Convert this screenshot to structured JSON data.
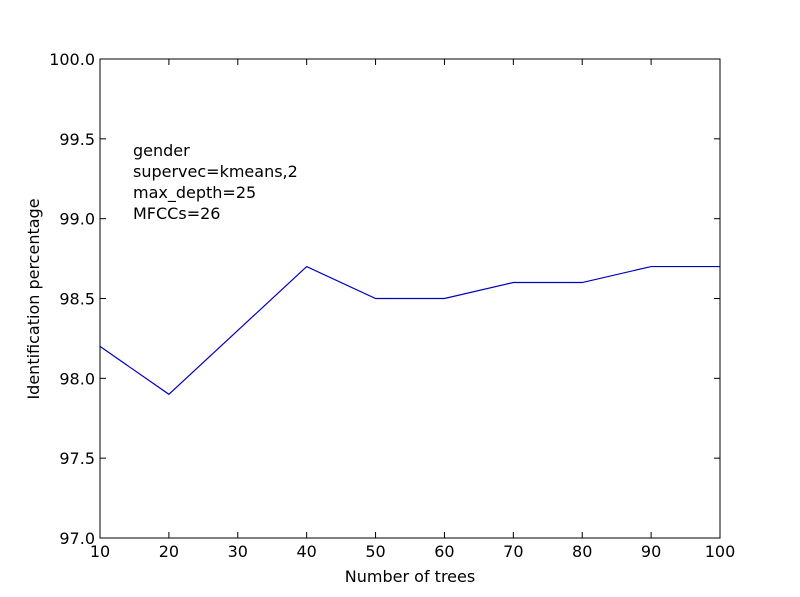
{
  "chart_data": {
    "type": "line",
    "title": "",
    "xlabel": "Number of trees",
    "ylabel": "Identification percentage",
    "xlim": [
      10,
      100
    ],
    "ylim": [
      97.0,
      100.0
    ],
    "xticks": [
      10,
      20,
      30,
      40,
      50,
      60,
      70,
      80,
      90,
      100
    ],
    "yticks": [
      97.0,
      97.5,
      98.0,
      98.5,
      99.0,
      99.5,
      100.0
    ],
    "xtick_labels": [
      "10",
      "20",
      "30",
      "40",
      "50",
      "60",
      "70",
      "80",
      "90",
      "100"
    ],
    "ytick_labels": [
      "97.0",
      "97.5",
      "98.0",
      "98.5",
      "99.0",
      "99.5",
      "100.0"
    ],
    "grid": false,
    "line_color": "#0000bf",
    "series": [
      {
        "x": [
          10,
          20,
          30,
          40,
          50,
          60,
          70,
          80,
          90,
          100
        ],
        "y": [
          98.2,
          97.9,
          98.3,
          98.7,
          98.5,
          98.5,
          98.6,
          98.6,
          98.7,
          98.7
        ]
      }
    ],
    "annotations": [
      "gender",
      "supervec=kmeans,2",
      "max_depth=25",
      "MFCCs=26"
    ]
  }
}
